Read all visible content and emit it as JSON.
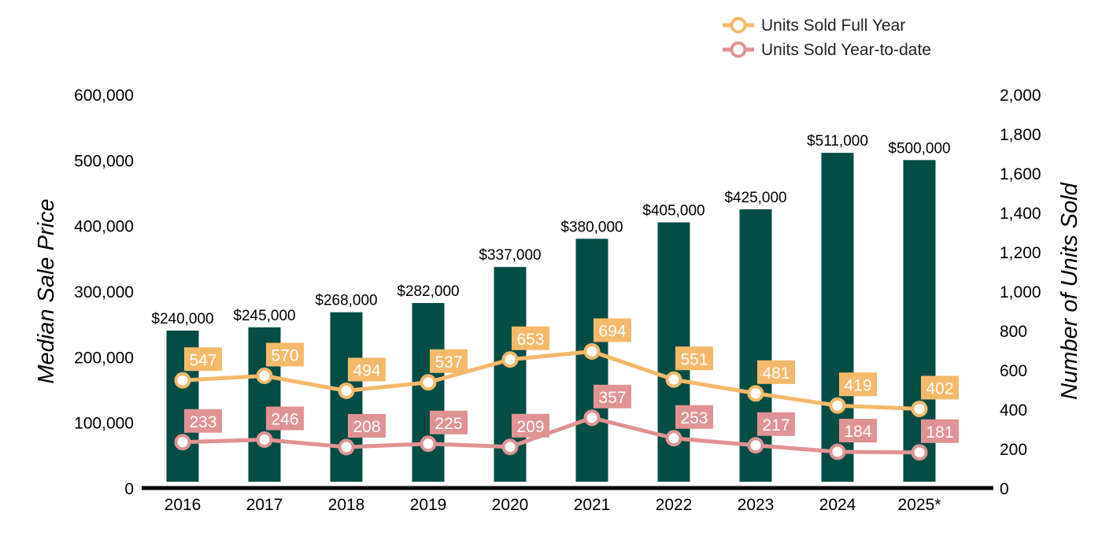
{
  "chart_data": {
    "type": "bar+line",
    "categories": [
      "2016",
      "2017",
      "2018",
      "2019",
      "2020",
      "2021",
      "2022",
      "2023",
      "2024",
      "2025*"
    ],
    "bars": {
      "axis": "left",
      "values": [
        240000,
        245000,
        268000,
        282000,
        337000,
        380000,
        405000,
        425000,
        511000,
        500000
      ],
      "labels": [
        "$240,000",
        "$245,000",
        "$268,000",
        "$282,000",
        "$337,000",
        "$380,000",
        "$405,000",
        "$425,000",
        "$511,000",
        "$500,000"
      ],
      "color": "#034d44"
    },
    "series": [
      {
        "name": "Units Sold Full Year",
        "axis": "right",
        "values": [
          547,
          570,
          494,
          537,
          653,
          694,
          551,
          481,
          419,
          402
        ],
        "color": "#f5b96b"
      },
      {
        "name": "Units Sold Year-to-date",
        "axis": "right",
        "values": [
          233,
          246,
          208,
          225,
          209,
          357,
          253,
          217,
          184,
          181
        ],
        "color": "#e09394"
      }
    ],
    "y_left": {
      "label": "Median Sale Price",
      "range": [
        0,
        600000
      ],
      "ticks": [
        0,
        100000,
        200000,
        300000,
        400000,
        500000,
        600000
      ],
      "tick_labels": [
        "0",
        "100,000",
        "200,000",
        "300,000",
        "400,000",
        "500,000",
        "600,000"
      ]
    },
    "y_right": {
      "label": "Number of Units Sold",
      "range": [
        0,
        2000
      ],
      "ticks": [
        0,
        200,
        400,
        600,
        800,
        1000,
        1200,
        1400,
        1600,
        1800,
        2000
      ],
      "tick_labels": [
        "0",
        "200",
        "400",
        "600",
        "800",
        "1,000",
        "1,200",
        "1,400",
        "1,600",
        "1,800",
        "2,000"
      ]
    },
    "legend_position": "top-right",
    "grid": false
  }
}
